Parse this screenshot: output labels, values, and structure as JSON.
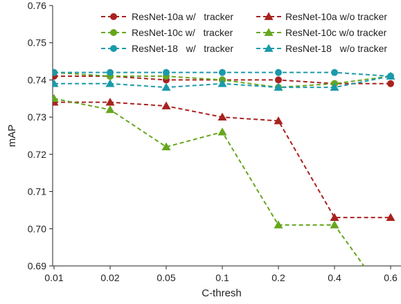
{
  "chart_data": {
    "type": "line",
    "xlabel": "C-thresh",
    "ylabel": "mAP",
    "categories": [
      "0.01",
      "0.02",
      "0.05",
      "0.1",
      "0.2",
      "0.4",
      "0.6"
    ],
    "ylim": [
      0.69,
      0.76
    ],
    "yticks": [
      "0.69",
      "0.70",
      "0.71",
      "0.72",
      "0.73",
      "0.74",
      "0.75",
      "0.76"
    ],
    "grid": false,
    "legend_position": "top-right",
    "series": [
      {
        "name": "ResNet-10a w/   tracker",
        "color": "#a8221f",
        "marker": "circle",
        "values": [
          0.741,
          0.741,
          0.74,
          0.74,
          0.74,
          0.739,
          0.739
        ]
      },
      {
        "name": "ResNet-10c w/   tracker",
        "color": "#66a61e",
        "marker": "circle",
        "values": [
          0.742,
          0.741,
          0.741,
          0.74,
          0.738,
          0.739,
          0.741
        ]
      },
      {
        "name": "ResNet-18   w/   tracker",
        "color": "#1b9aaa",
        "marker": "circle",
        "values": [
          0.742,
          0.742,
          0.742,
          0.742,
          0.742,
          0.742,
          0.741
        ]
      },
      {
        "name": "ResNet-10a w/o tracker",
        "color": "#a8221f",
        "marker": "triangle",
        "values": [
          0.734,
          0.734,
          0.733,
          0.73,
          0.729,
          0.703,
          0.703
        ]
      },
      {
        "name": "ResNet-10c w/o tracker",
        "color": "#66a61e",
        "marker": "triangle",
        "values": [
          0.735,
          0.732,
          0.722,
          0.726,
          0.701,
          0.701,
          0.68
        ]
      },
      {
        "name": "ResNet-18   w/o tracker",
        "color": "#1b9aaa",
        "marker": "triangle",
        "values": [
          0.739,
          0.739,
          0.738,
          0.739,
          0.738,
          0.738,
          0.741
        ]
      }
    ]
  }
}
